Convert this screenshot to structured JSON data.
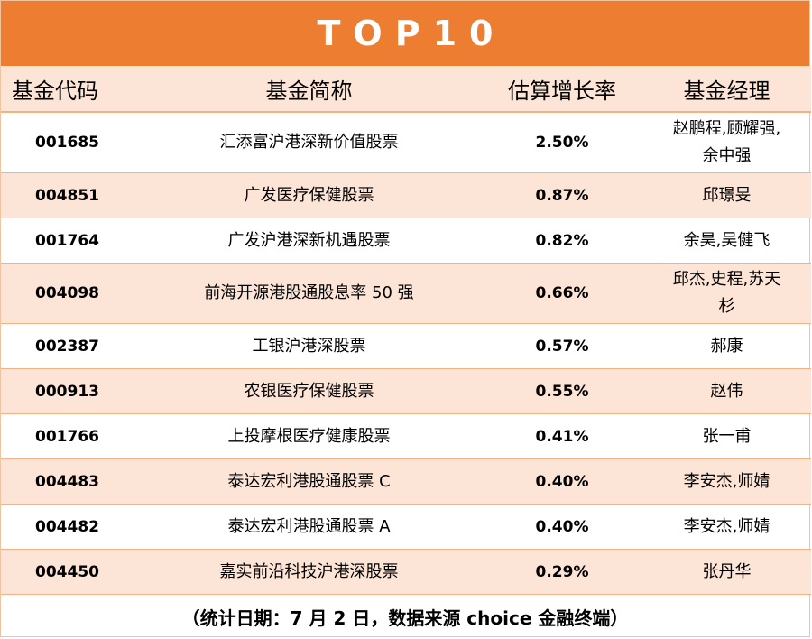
{
  "title": "TOP10",
  "headers": [
    "基金代码",
    "基金简称",
    "估算增长率",
    "基金经理"
  ],
  "rows": [
    {
      "code": "001685",
      "name": "汇添富沪港深新价值股票",
      "rate": "2.50%",
      "manager": "赵鹏程,顾耀强,余中强"
    },
    {
      "code": "004851",
      "name": "广发医疗保健股票",
      "rate": "0.87%",
      "manager": "邱璟旻"
    },
    {
      "code": "001764",
      "name": "广发沪港深新机遇股票",
      "rate": "0.82%",
      "manager": "余昊,吴健飞"
    },
    {
      "code": "004098",
      "name": "前海开源港股通股息率 50 强",
      "rate": "0.66%",
      "manager": "邱杰,史程,苏天杉"
    },
    {
      "code": "002387",
      "name": "工银沪港深股票",
      "rate": "0.57%",
      "manager": "郝康"
    },
    {
      "code": "000913",
      "name": "农银医疗保健股票",
      "rate": "0.55%",
      "manager": "赵伟"
    },
    {
      "code": "001766",
      "name": "上投摩根医疗健康股票",
      "rate": "0.41%",
      "manager": "张一甫"
    },
    {
      "code": "004483",
      "name": "泰达宏利港股通股票 C",
      "rate": "0.40%",
      "manager": "李安杰,师婧"
    },
    {
      "code": "004482",
      "name": "泰达宏利港股通股票 A",
      "rate": "0.40%",
      "manager": "李安杰,师婧"
    },
    {
      "code": "004450",
      "name": "嘉实前沿科技沪港深股票",
      "rate": "0.29%",
      "manager": "张丹华"
    }
  ],
  "footer": "（统计日期：7 月 2 日，数据来源 choice 金融终端）"
}
